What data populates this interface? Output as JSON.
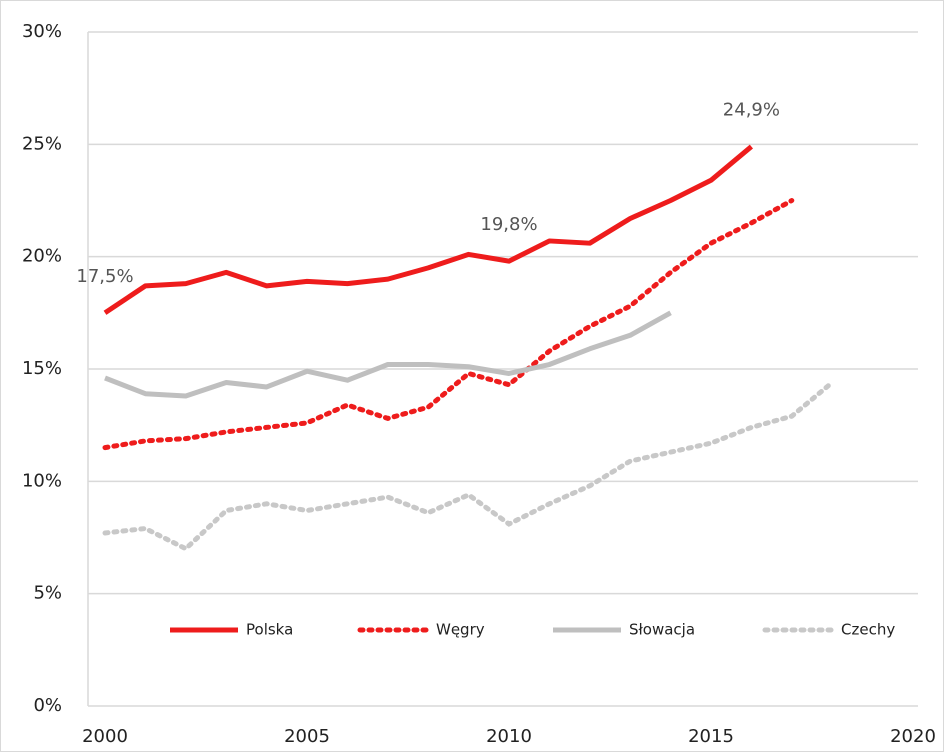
{
  "chart_data": {
    "type": "line",
    "xlim": [
      2000,
      2020
    ],
    "xticks": [
      2000,
      2005,
      2010,
      2015,
      2020
    ],
    "ylim": [
      0,
      30
    ],
    "yticks": [
      {
        "value": 0,
        "label": "0%"
      },
      {
        "value": 5,
        "label": "5%"
      },
      {
        "value": 10,
        "label": "10%"
      },
      {
        "value": 15,
        "label": "15%"
      },
      {
        "value": 20,
        "label": "20%"
      },
      {
        "value": 25,
        "label": "25%"
      },
      {
        "value": 30,
        "label": "30%"
      }
    ],
    "grid": true,
    "legend": "bottom",
    "series": [
      {
        "name": "Polska",
        "color": "#ee1c1c",
        "style": "solid",
        "x": [
          2000,
          2001,
          2002,
          2003,
          2004,
          2005,
          2006,
          2007,
          2008,
          2009,
          2010,
          2011,
          2012,
          2013,
          2014,
          2015,
          2016
        ],
        "values": [
          17.5,
          18.7,
          18.8,
          19.3,
          18.7,
          18.9,
          18.8,
          19.0,
          19.5,
          20.1,
          19.8,
          20.7,
          20.6,
          21.7,
          22.5,
          23.4,
          24.9
        ],
        "value_labels": [
          "17,5%",
          null,
          null,
          null,
          null,
          null,
          null,
          null,
          null,
          null,
          "19,8%",
          null,
          null,
          null,
          null,
          null,
          "24,9%"
        ]
      },
      {
        "name": "Węgry",
        "color": "#ee1c1c",
        "style": "dotted",
        "x": [
          2000,
          2001,
          2002,
          2003,
          2004,
          2005,
          2006,
          2007,
          2008,
          2009,
          2010,
          2011,
          2012,
          2013,
          2014,
          2015,
          2016,
          2017
        ],
        "values": [
          11.5,
          11.8,
          11.9,
          12.2,
          12.4,
          12.6,
          13.4,
          12.8,
          13.3,
          14.8,
          14.3,
          15.8,
          16.9,
          17.8,
          19.3,
          20.6,
          21.5,
          22.5
        ]
      },
      {
        "name": "Słowacja",
        "color": "#bfbfbf",
        "style": "solid",
        "x": [
          2000,
          2001,
          2002,
          2003,
          2004,
          2005,
          2006,
          2007,
          2008,
          2009,
          2010,
          2011,
          2012,
          2013,
          2014
        ],
        "values": [
          14.6,
          13.9,
          13.8,
          14.4,
          14.2,
          14.9,
          14.5,
          15.2,
          15.2,
          15.1,
          14.8,
          15.2,
          15.9,
          16.5,
          17.5
        ]
      },
      {
        "name": "Czechy",
        "color": "#c8c8c8",
        "style": "dotted",
        "x": [
          2000,
          2001,
          2002,
          2003,
          2004,
          2005,
          2006,
          2007,
          2008,
          2009,
          2010,
          2011,
          2012,
          2013,
          2014,
          2015,
          2016,
          2017,
          2018
        ],
        "values": [
          7.7,
          7.9,
          7.0,
          8.7,
          9.0,
          8.7,
          9.0,
          9.3,
          8.6,
          9.4,
          8.1,
          9.0,
          9.8,
          10.9,
          11.3,
          11.7,
          12.4,
          12.9,
          14.4
        ]
      }
    ]
  }
}
